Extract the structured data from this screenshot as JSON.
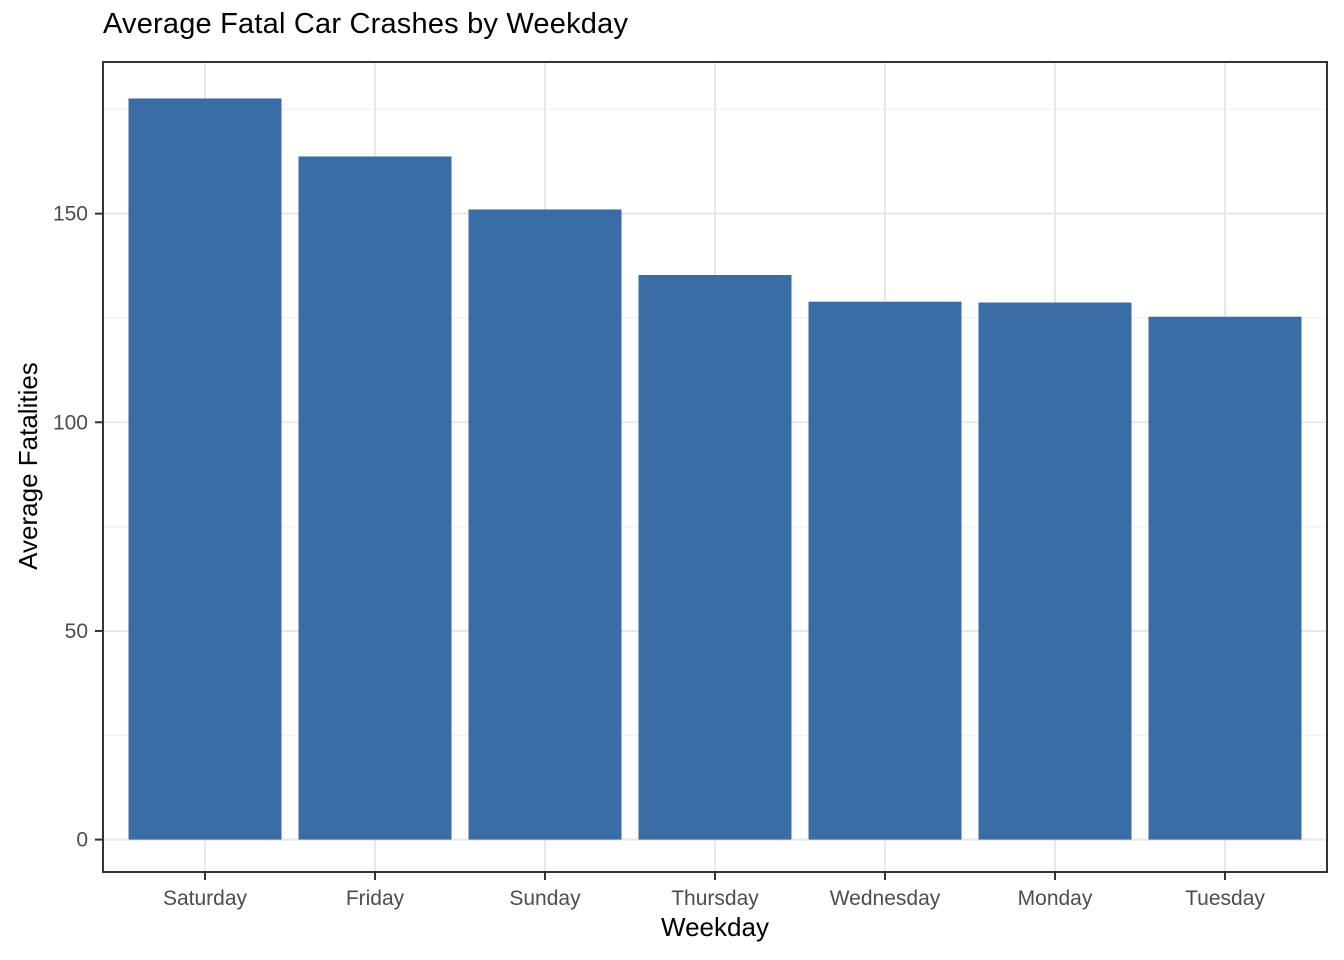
{
  "chart_data": {
    "type": "bar",
    "title": "Average Fatal Car Crashes by Weekday",
    "xlabel": "Weekday",
    "ylabel": "Average Fatalities",
    "categories": [
      "Saturday",
      "Friday",
      "Sunday",
      "Thursday",
      "Wednesday",
      "Monday",
      "Tuesday"
    ],
    "values": [
      177.6,
      163.7,
      151.0,
      135.3,
      128.9,
      128.7,
      125.3
    ],
    "yticks": [
      0,
      50,
      100,
      150
    ],
    "ytick_labels": [
      "0",
      "50",
      "100",
      "150"
    ],
    "minor_yticks": [
      25,
      75,
      125,
      175
    ],
    "ylim": [
      -7.9,
      186.2
    ],
    "grid": "horizontal major+minor, vertical major at category centers",
    "legend": "none",
    "colors": {
      "bar": "#3A6DA5",
      "grid_major": "#E8E8E8",
      "grid_minor": "#F3F3F3",
      "panel_border": "#333333",
      "tick_mark": "#333333",
      "tick_label": "#4D4D4D",
      "title_text": "#000000",
      "background": "#FFFFFF"
    }
  }
}
